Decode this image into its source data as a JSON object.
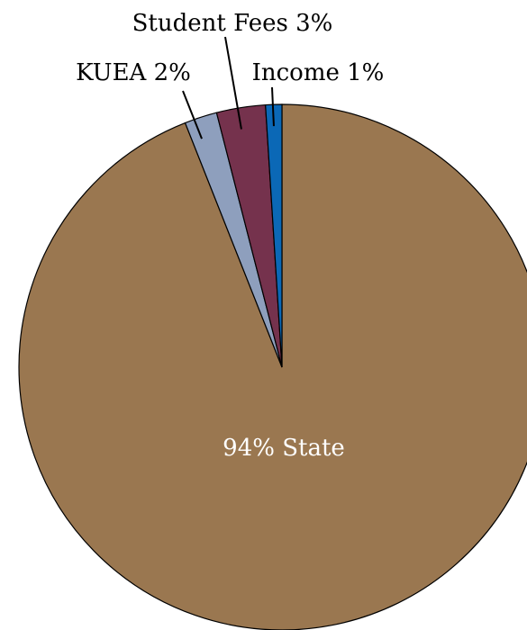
{
  "chart_data": {
    "type": "pie",
    "title": "",
    "slices": [
      {
        "name": "State",
        "value": 94,
        "label": "94% State",
        "color": "#9a7750"
      },
      {
        "name": "KUEA",
        "value": 2,
        "label": "KUEA  2%",
        "color": "#8e9fbd"
      },
      {
        "name": "Student Fees",
        "value": 3,
        "label": "Student Fees 3%",
        "color": "#75324d"
      },
      {
        "name": "Income",
        "value": 1,
        "label": "Income 1%",
        "color": "#0b68b6"
      }
    ]
  }
}
